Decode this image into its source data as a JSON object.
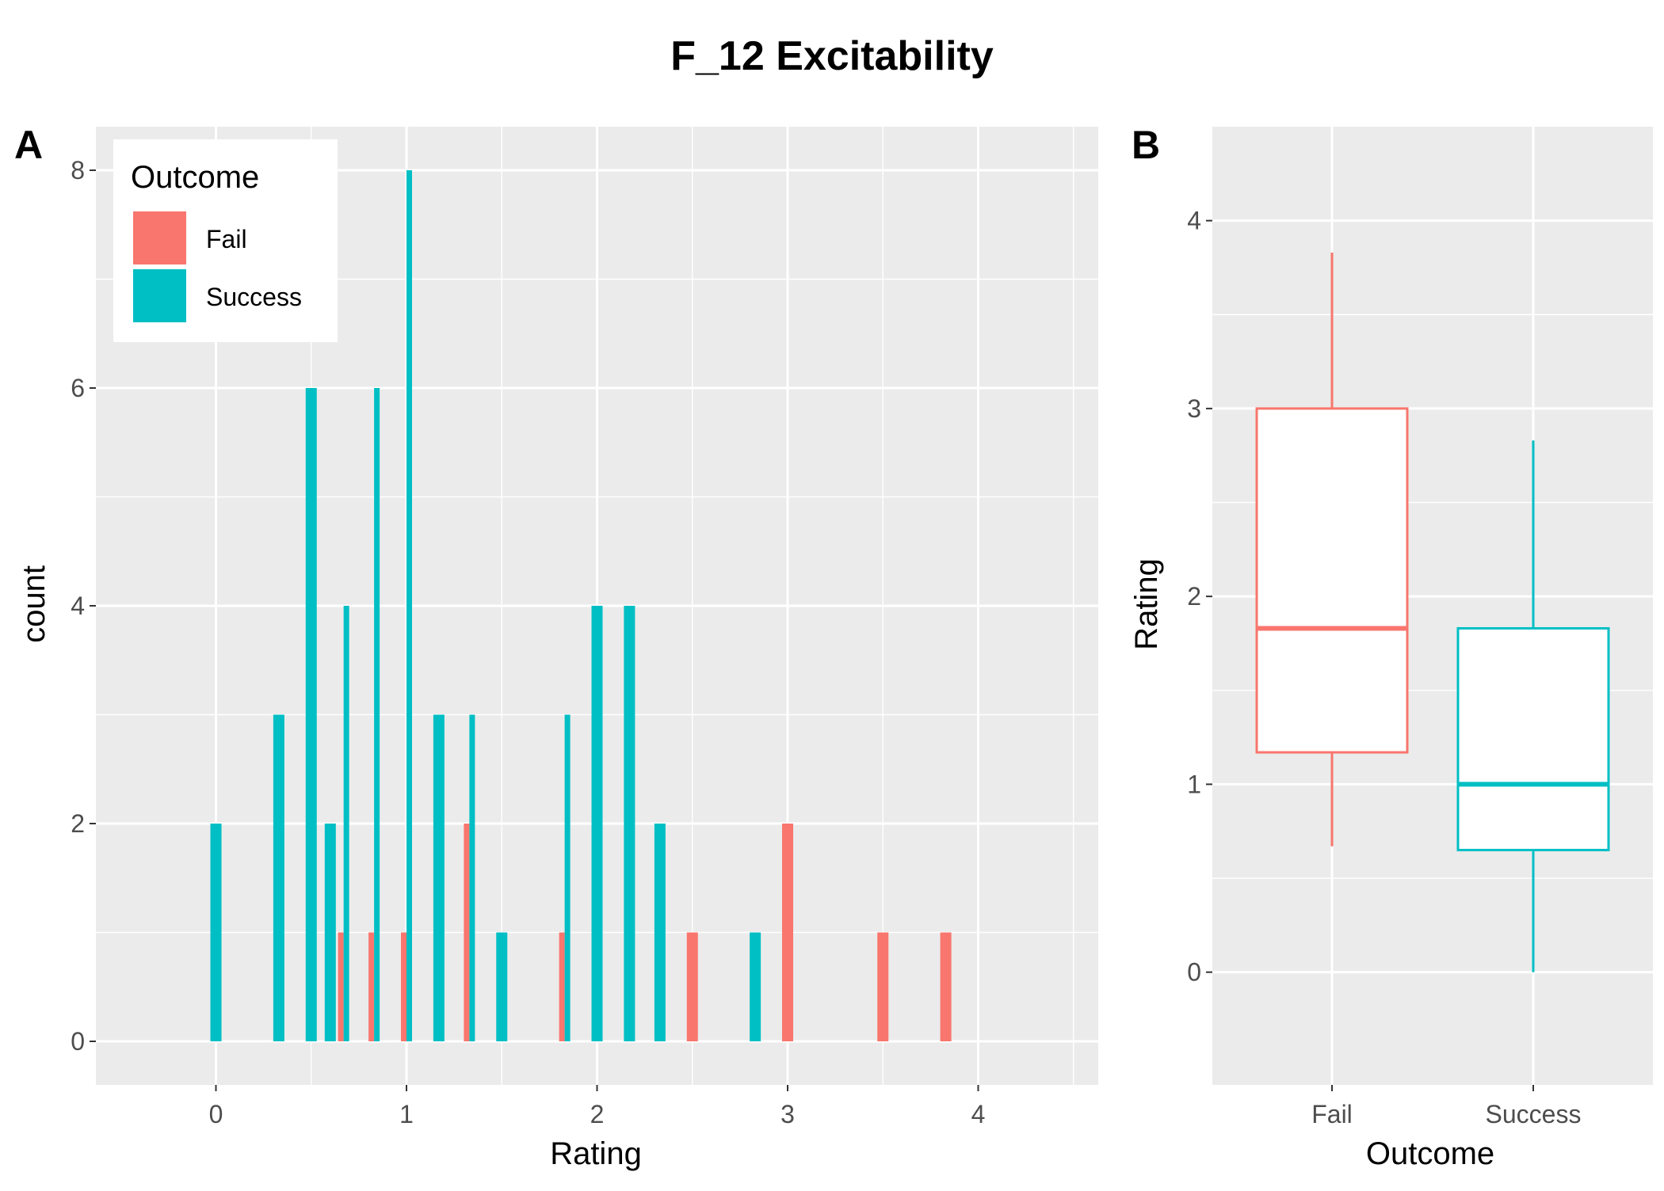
{
  "title": "F_12 Excitability",
  "colors": {
    "fail": "#F8766D",
    "success": "#00BFC4",
    "panel_bg": "#EBEBEB",
    "grid": "#FFFFFF",
    "tick_text": "#4D4D4D"
  },
  "chart_data": [
    {
      "panel": "A",
      "type": "bar",
      "xlabel": "Rating",
      "ylabel": "count",
      "xlim": [
        -0.63,
        4.63
      ],
      "ylim": [
        -0.4,
        8.4
      ],
      "xticks": [
        "0",
        "1",
        "2",
        "3",
        "4"
      ],
      "yticks": [
        "0",
        "2",
        "4",
        "6",
        "8"
      ],
      "grid": true,
      "legend": {
        "title": "Outcome",
        "position": "top-left",
        "entries": [
          "Fail",
          "Success"
        ]
      },
      "series": [
        {
          "name": "Fail",
          "color": "#F8766D",
          "points": [
            {
              "x": 0.67,
              "y": 1
            },
            {
              "x": 0.83,
              "y": 1
            },
            {
              "x": 1.0,
              "y": 1
            },
            {
              "x": 1.33,
              "y": 2
            },
            {
              "x": 1.83,
              "y": 1
            },
            {
              "x": 2.5,
              "y": 1
            },
            {
              "x": 3.0,
              "y": 2
            },
            {
              "x": 3.5,
              "y": 1
            },
            {
              "x": 3.83,
              "y": 1
            }
          ]
        },
        {
          "name": "Success",
          "color": "#00BFC4",
          "points": [
            {
              "x": 0.0,
              "y": 2
            },
            {
              "x": 0.33,
              "y": 3
            },
            {
              "x": 0.5,
              "y": 6
            },
            {
              "x": 0.6,
              "y": 2
            },
            {
              "x": 0.67,
              "y": 4
            },
            {
              "x": 0.83,
              "y": 6
            },
            {
              "x": 1.0,
              "y": 8
            },
            {
              "x": 1.17,
              "y": 3
            },
            {
              "x": 1.33,
              "y": 3
            },
            {
              "x": 1.5,
              "y": 1
            },
            {
              "x": 1.83,
              "y": 3
            },
            {
              "x": 2.0,
              "y": 4
            },
            {
              "x": 2.17,
              "y": 4
            },
            {
              "x": 2.33,
              "y": 2
            },
            {
              "x": 2.83,
              "y": 1
            }
          ]
        }
      ]
    },
    {
      "panel": "B",
      "type": "box",
      "xlabel": "Outcome",
      "ylabel": "Rating",
      "categories": [
        "Fail",
        "Success"
      ],
      "ylim": [
        -0.6,
        4.5
      ],
      "yticks": [
        "0",
        "1",
        "2",
        "3",
        "4"
      ],
      "grid": true,
      "boxes": [
        {
          "category": "Fail",
          "color": "#F8766D",
          "whisker_low": 0.67,
          "q1": 1.17,
          "median": 1.83,
          "q3": 3.0,
          "whisker_high": 3.83
        },
        {
          "category": "Success",
          "color": "#00BFC4",
          "whisker_low": 0.0,
          "q1": 0.65,
          "median": 1.0,
          "q3": 1.83,
          "whisker_high": 2.83
        }
      ]
    }
  ]
}
